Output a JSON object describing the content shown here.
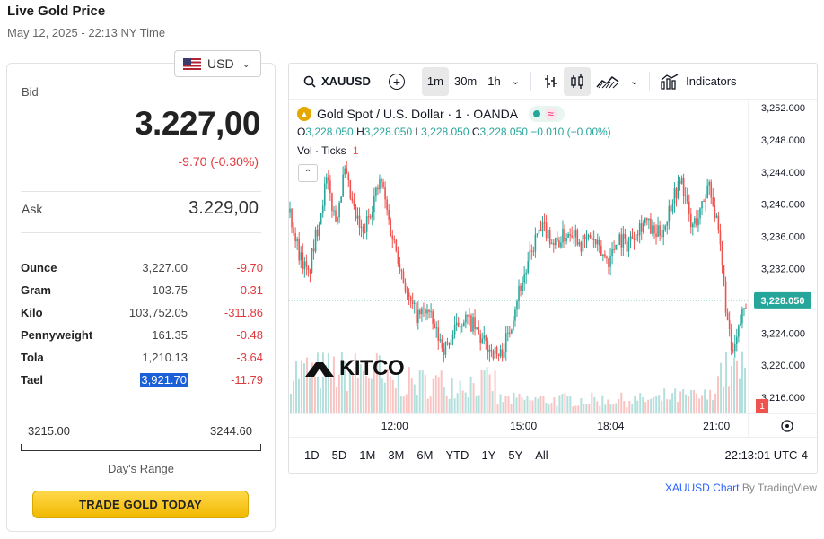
{
  "page": {
    "title": "Live Gold Price",
    "date": "May 12, 2025 - 22:13 NY Time"
  },
  "price_panel": {
    "currency": "USD",
    "bid_label": "Bid",
    "bid_value": "3.227,00",
    "bid_change": "-9.70 (-0.30%)",
    "ask_label": "Ask",
    "ask_value": "3.229,00",
    "units": [
      {
        "name": "Ounce",
        "price": "3,227.00",
        "change": "-9.70"
      },
      {
        "name": "Gram",
        "price": "103.75",
        "change": "-0.31"
      },
      {
        "name": "Kilo",
        "price": "103,752.05",
        "change": "-311.86"
      },
      {
        "name": "Pennyweight",
        "price": "161.35",
        "change": "-0.48"
      },
      {
        "name": "Tola",
        "price": "1,210.13",
        "change": "-3.64"
      },
      {
        "name": "Tael",
        "price": "3,921.70",
        "change": "-11.79"
      }
    ],
    "range_low": "3215.00",
    "range_high": "3244.60",
    "range_label": "Day's Range",
    "trade_button": "TRADE GOLD TODAY"
  },
  "chart": {
    "symbol": "XAUUSD",
    "intervals": [
      "1m",
      "30m",
      "1h"
    ],
    "active_interval": "1m",
    "indicators_label": "Indicators",
    "title": "Gold Spot / U.S. Dollar · 1 · OANDA",
    "ohlc": {
      "o": "3,228.050",
      "h": "3,228.050",
      "l": "3,228.050",
      "c": "3,228.050",
      "change": "−0.010 (−0.00%)"
    },
    "vol_label": "Vol · Ticks",
    "vol_value": "1",
    "last_price_tag": "3,228.050",
    "volume_tag": "1",
    "ranges": [
      "1D",
      "5D",
      "1M",
      "3M",
      "6M",
      "YTD",
      "1Y",
      "5Y",
      "All"
    ],
    "clock": "22:13:01 UTC-4",
    "watermark": "KITCO",
    "colors": {
      "up": "#26a69a",
      "down": "#ef5350",
      "accent": "#2962ff",
      "gold": "#f1b800"
    }
  },
  "chart_data": {
    "type": "candlestick",
    "y_ticks": [
      "3,252.000",
      "3,248.000",
      "3,244.000",
      "3,240.000",
      "3,236.000",
      "3,232.000",
      "3,228.000",
      "3,224.000",
      "3,220.000",
      "3,216.000"
    ],
    "x_ticks": [
      "12:00",
      "15:00",
      "18:04",
      "21:00"
    ],
    "ylim": [
      3214,
      3253
    ],
    "last_price": 3228.05,
    "price_path": [
      [
        0.0,
        3239
      ],
      [
        0.02,
        3234
      ],
      [
        0.04,
        3231
      ],
      [
        0.06,
        3237
      ],
      [
        0.08,
        3243
      ],
      [
        0.1,
        3238
      ],
      [
        0.12,
        3244
      ],
      [
        0.14,
        3239
      ],
      [
        0.16,
        3236
      ],
      [
        0.18,
        3240
      ],
      [
        0.2,
        3243
      ],
      [
        0.22,
        3237
      ],
      [
        0.24,
        3233
      ],
      [
        0.26,
        3228
      ],
      [
        0.28,
        3226
      ],
      [
        0.3,
        3227
      ],
      [
        0.32,
        3224
      ],
      [
        0.34,
        3222
      ],
      [
        0.36,
        3224
      ],
      [
        0.38,
        3226
      ],
      [
        0.4,
        3225
      ],
      [
        0.42,
        3223
      ],
      [
        0.44,
        3222
      ],
      [
        0.46,
        3221
      ],
      [
        0.48,
        3224
      ],
      [
        0.5,
        3229
      ],
      [
        0.52,
        3232
      ],
      [
        0.54,
        3236
      ],
      [
        0.56,
        3237
      ],
      [
        0.58,
        3235
      ],
      [
        0.6,
        3236
      ],
      [
        0.62,
        3237
      ],
      [
        0.64,
        3235
      ],
      [
        0.66,
        3236
      ],
      [
        0.68,
        3234
      ],
      [
        0.7,
        3233
      ],
      [
        0.72,
        3236
      ],
      [
        0.74,
        3235
      ],
      [
        0.76,
        3237
      ],
      [
        0.78,
        3238
      ],
      [
        0.8,
        3236
      ],
      [
        0.82,
        3237
      ],
      [
        0.84,
        3241
      ],
      [
        0.86,
        3243
      ],
      [
        0.88,
        3237
      ],
      [
        0.9,
        3239
      ],
      [
        0.92,
        3243
      ],
      [
        0.94,
        3236
      ],
      [
        0.95,
        3231
      ],
      [
        0.96,
        3225
      ],
      [
        0.97,
        3221
      ],
      [
        0.98,
        3223
      ],
      [
        0.99,
        3226
      ],
      [
        1.0,
        3228
      ]
    ]
  }
}
